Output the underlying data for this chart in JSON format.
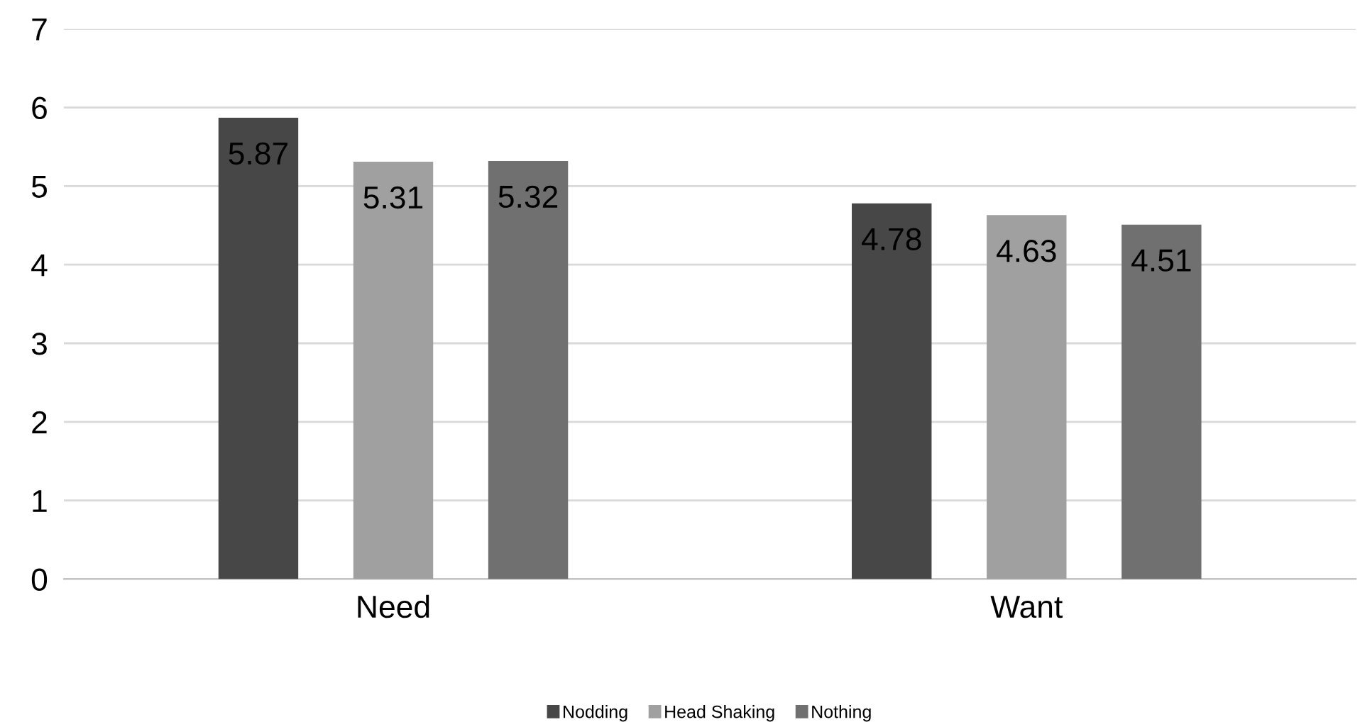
{
  "chart_data": {
    "type": "bar",
    "categories": [
      "Need",
      "Want"
    ],
    "series": [
      {
        "name": "Nodding",
        "color": "#474747",
        "values": [
          5.87,
          4.78
        ]
      },
      {
        "name": "Head Shaking",
        "color": "#a0a0a0",
        "values": [
          5.31,
          4.63
        ]
      },
      {
        "name": "Nothing",
        "color": "#707070",
        "values": [
          5.32,
          4.51
        ]
      }
    ],
    "ylim": [
      0,
      7
    ],
    "yticks": [
      0,
      1,
      2,
      3,
      4,
      5,
      6,
      7
    ],
    "grid": "y",
    "legend": "bottom",
    "data_labels": true
  }
}
